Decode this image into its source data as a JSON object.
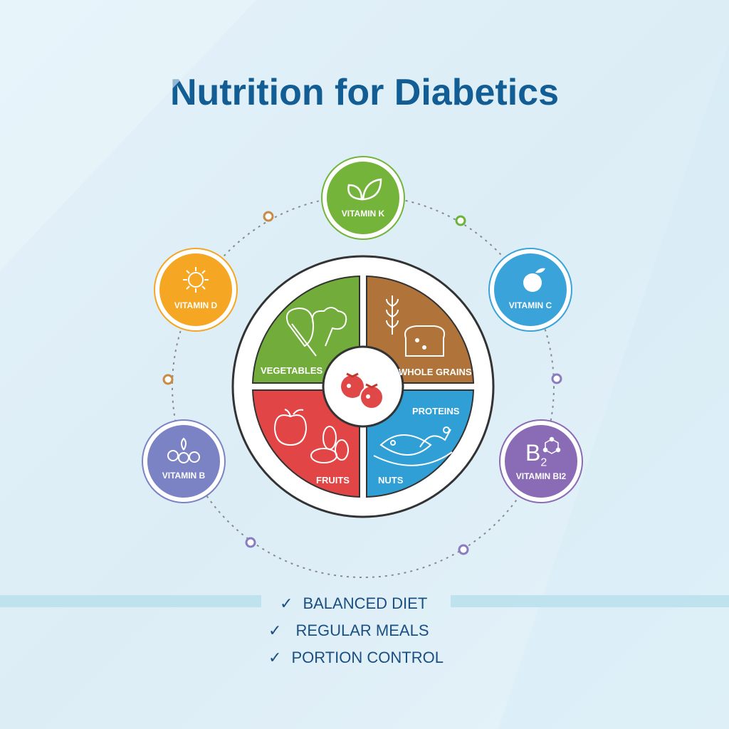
{
  "title": "Nutrition for Diabetics",
  "plate": {
    "quadrants": [
      {
        "label": "VEGETABLES",
        "icon": "vegetables-icon",
        "color": "#72ad3c"
      },
      {
        "label": "WHOLE GRAINS",
        "icon": "bread-wheat-icon",
        "color": "#b0733a"
      },
      {
        "label": "FRUITS",
        "icon": "apple-almond-icon",
        "color": "#e24545"
      },
      {
        "label": "PROTEINS",
        "second_label": "NUTS",
        "icon": "fish-chicken-icon",
        "color": "#2f9fd6"
      }
    ],
    "center_icon": "tomatoes-icon"
  },
  "vitamins": [
    {
      "label": "VITAMIN K",
      "icon": "leaf-icon",
      "color": "#74b43a"
    },
    {
      "label": "VITAMIN D",
      "icon": "sun-icon",
      "color": "#f5a623"
    },
    {
      "label": "VITAMIN C",
      "icon": "orange-icon",
      "color": "#3aa3da"
    },
    {
      "label": "VITAMIN B",
      "icon": "berries-icon",
      "color": "#7c83c4"
    },
    {
      "label": "VITAMIN BI2",
      "icon_text": "B",
      "icon_sub": "2",
      "icon": "molecule-icon",
      "color": "#8a6bb5"
    }
  ],
  "checklist": [
    {
      "label": "BALANCED DIET",
      "icon": "check-icon"
    },
    {
      "label": "REGULAR MEALS",
      "icon": "check-icon"
    },
    {
      "label": "PORTION CONTROL",
      "icon": "check-icon"
    }
  ]
}
